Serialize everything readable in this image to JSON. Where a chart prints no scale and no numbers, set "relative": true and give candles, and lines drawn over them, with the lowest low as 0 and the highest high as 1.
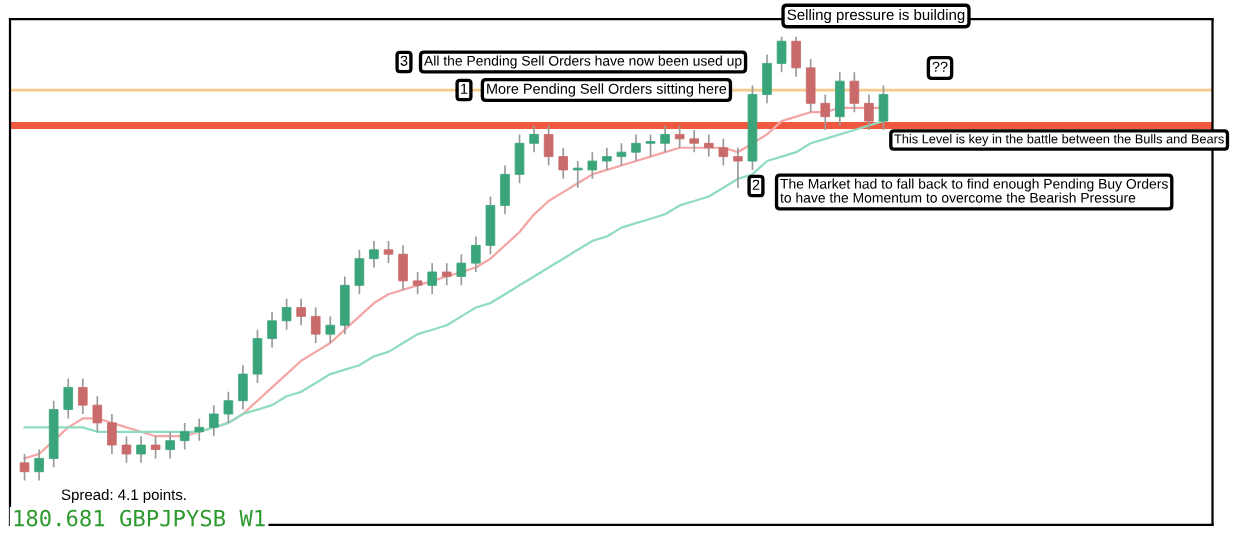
{
  "chart_data": {
    "type": "candlestick",
    "relative": true,
    "grid": false,
    "legend": false,
    "categories": [
      null,
      null,
      null,
      null,
      null,
      null,
      null,
      null,
      null,
      null,
      null,
      null,
      null,
      null,
      null,
      null,
      null,
      null,
      null,
      null,
      null,
      null,
      null,
      null,
      null,
      null,
      null,
      null,
      null,
      null,
      null,
      null,
      null,
      null,
      null,
      null,
      null,
      null,
      null,
      null,
      null,
      null,
      null,
      null,
      null,
      null,
      null,
      null,
      null,
      null,
      null,
      null,
      null,
      null,
      null,
      null,
      null,
      null,
      null,
      null
    ],
    "ohlc": [
      [
        0.04,
        0.06,
        0.0,
        0.02
      ],
      [
        0.02,
        0.07,
        0.0,
        0.05
      ],
      [
        0.05,
        0.18,
        0.03,
        0.16
      ],
      [
        0.16,
        0.23,
        0.14,
        0.21
      ],
      [
        0.21,
        0.23,
        0.15,
        0.17
      ],
      [
        0.17,
        0.19,
        0.11,
        0.13
      ],
      [
        0.13,
        0.15,
        0.06,
        0.08
      ],
      [
        0.08,
        0.1,
        0.04,
        0.06
      ],
      [
        0.06,
        0.1,
        0.04,
        0.08
      ],
      [
        0.08,
        0.1,
        0.05,
        0.07
      ],
      [
        0.07,
        0.11,
        0.05,
        0.09
      ],
      [
        0.09,
        0.13,
        0.07,
        0.11
      ],
      [
        0.11,
        0.14,
        0.09,
        0.12
      ],
      [
        0.12,
        0.17,
        0.1,
        0.15
      ],
      [
        0.15,
        0.2,
        0.13,
        0.18
      ],
      [
        0.18,
        0.26,
        0.16,
        0.24
      ],
      [
        0.24,
        0.34,
        0.22,
        0.32
      ],
      [
        0.32,
        0.38,
        0.3,
        0.36
      ],
      [
        0.36,
        0.41,
        0.34,
        0.39
      ],
      [
        0.39,
        0.41,
        0.35,
        0.37
      ],
      [
        0.37,
        0.39,
        0.31,
        0.33
      ],
      [
        0.33,
        0.37,
        0.31,
        0.35
      ],
      [
        0.35,
        0.46,
        0.33,
        0.44
      ],
      [
        0.44,
        0.52,
        0.42,
        0.5
      ],
      [
        0.5,
        0.54,
        0.48,
        0.52
      ],
      [
        0.52,
        0.54,
        0.49,
        0.51
      ],
      [
        0.51,
        0.53,
        0.43,
        0.45
      ],
      [
        0.45,
        0.47,
        0.42,
        0.44
      ],
      [
        0.44,
        0.49,
        0.42,
        0.47
      ],
      [
        0.47,
        0.49,
        0.44,
        0.46
      ],
      [
        0.46,
        0.51,
        0.44,
        0.49
      ],
      [
        0.49,
        0.55,
        0.47,
        0.53
      ],
      [
        0.53,
        0.64,
        0.51,
        0.62
      ],
      [
        0.62,
        0.71,
        0.6,
        0.69
      ],
      [
        0.69,
        0.78,
        0.67,
        0.76
      ],
      [
        0.76,
        0.8,
        0.74,
        0.78
      ],
      [
        0.78,
        0.8,
        0.71,
        0.73
      ],
      [
        0.73,
        0.75,
        0.68,
        0.7
      ],
      [
        0.7,
        0.72,
        0.66,
        0.7
      ],
      [
        0.7,
        0.74,
        0.68,
        0.72
      ],
      [
        0.72,
        0.75,
        0.7,
        0.73
      ],
      [
        0.73,
        0.76,
        0.71,
        0.74
      ],
      [
        0.74,
        0.78,
        0.72,
        0.76
      ],
      [
        0.76,
        0.78,
        0.73,
        0.76
      ],
      [
        0.76,
        0.8,
        0.74,
        0.78
      ],
      [
        0.78,
        0.8,
        0.75,
        0.77
      ],
      [
        0.77,
        0.79,
        0.74,
        0.76
      ],
      [
        0.76,
        0.78,
        0.73,
        0.75
      ],
      [
        0.75,
        0.77,
        0.71,
        0.73
      ],
      [
        0.73,
        0.75,
        0.66,
        0.72
      ],
      [
        0.72,
        0.89,
        0.7,
        0.87
      ],
      [
        0.87,
        0.96,
        0.85,
        0.94
      ],
      [
        0.94,
        1.0,
        0.92,
        0.99
      ],
      [
        0.99,
        1.0,
        0.91,
        0.93
      ],
      [
        0.93,
        0.95,
        0.83,
        0.85
      ],
      [
        0.85,
        0.87,
        0.79,
        0.82
      ],
      [
        0.82,
        0.92,
        0.8,
        0.9
      ],
      [
        0.9,
        0.92,
        0.83,
        0.85
      ],
      [
        0.85,
        0.87,
        0.79,
        0.81
      ],
      [
        0.81,
        0.89,
        0.79,
        0.87
      ]
    ],
    "series": [
      {
        "type": "line",
        "color": "#f4a6a6",
        "values": [
          0.05,
          0.06,
          0.09,
          0.12,
          0.14,
          0.14,
          0.13,
          0.12,
          0.11,
          0.1,
          0.1,
          0.1,
          0.11,
          0.12,
          0.13,
          0.15,
          0.18,
          0.21,
          0.24,
          0.27,
          0.29,
          0.31,
          0.34,
          0.37,
          0.4,
          0.42,
          0.43,
          0.44,
          0.45,
          0.46,
          0.47,
          0.48,
          0.5,
          0.53,
          0.56,
          0.6,
          0.63,
          0.65,
          0.67,
          0.69,
          0.7,
          0.71,
          0.72,
          0.73,
          0.74,
          0.75,
          0.75,
          0.75,
          0.75,
          0.74,
          0.76,
          0.78,
          0.81,
          0.82,
          0.83,
          0.83,
          0.84,
          0.84,
          0.84,
          0.84
        ]
      },
      {
        "type": "line",
        "color": "#8fdcc0",
        "values": [
          0.12,
          0.12,
          0.12,
          0.12,
          0.12,
          0.11,
          0.11,
          0.11,
          0.11,
          0.11,
          0.11,
          0.11,
          0.11,
          0.12,
          0.13,
          0.15,
          0.16,
          0.17,
          0.19,
          0.2,
          0.22,
          0.24,
          0.25,
          0.26,
          0.28,
          0.29,
          0.31,
          0.33,
          0.34,
          0.35,
          0.37,
          0.39,
          0.4,
          0.42,
          0.44,
          0.46,
          0.48,
          0.5,
          0.52,
          0.54,
          0.55,
          0.57,
          0.58,
          0.59,
          0.6,
          0.62,
          0.63,
          0.64,
          0.66,
          0.68,
          0.69,
          0.72,
          0.73,
          0.74,
          0.76,
          0.77,
          0.78,
          0.79,
          0.8,
          0.81
        ]
      }
    ],
    "ref_lines": [
      {
        "axis": "y",
        "value": 0.88,
        "color": "#f7c98a",
        "line_style": "solid"
      },
      {
        "axis": "y",
        "value": 0.8,
        "color": "#f0593e",
        "line_style": "solid"
      }
    ],
    "annotations": [
      "Selling pressure is building",
      "3",
      "All the Pending Sell Orders have now been used up",
      "1",
      "More Pending Sell Orders sitting here",
      "??",
      "This Level is key in the battle between the Bulls and Bears",
      "2",
      "The Market had to fall back to find enough Pending Buy Orders\nto have the Momentum to overcome the Bearish Pressure",
      "Spread: 4.1 points.",
      "180.681 GBPJPYSB W1"
    ]
  }
}
